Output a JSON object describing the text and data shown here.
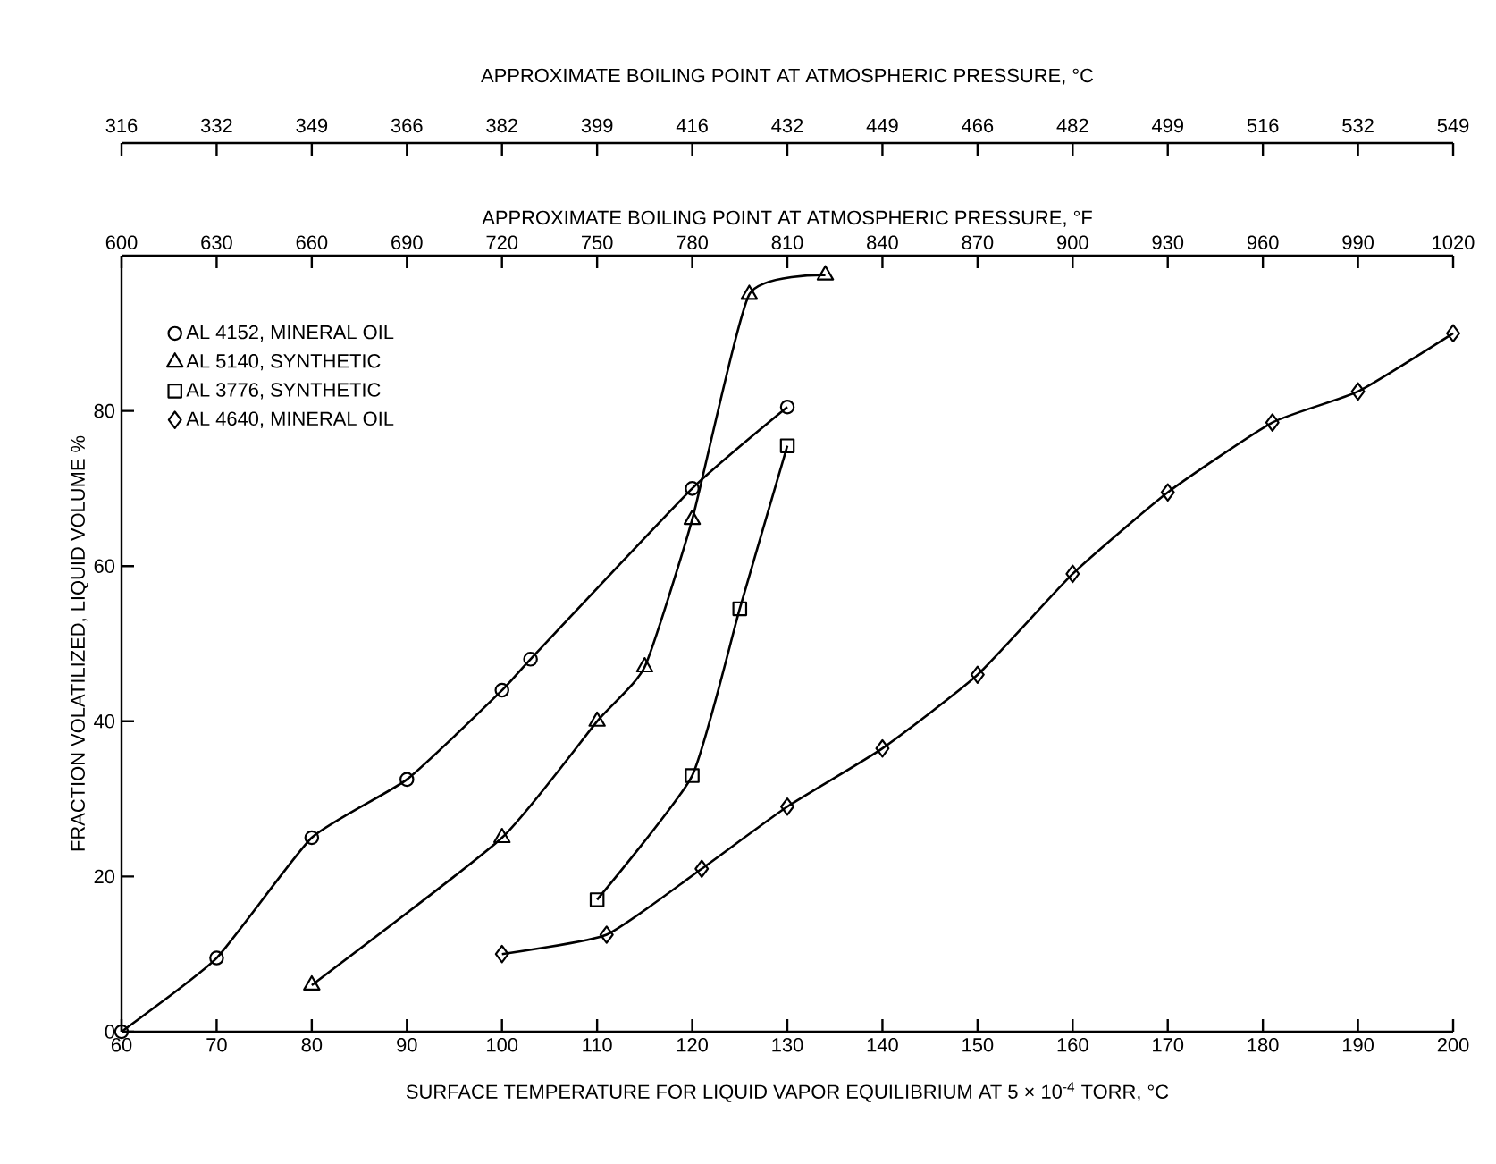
{
  "chart_data": {
    "type": "line",
    "title": "APPROXIMATE BOILING POINT AT ATMOSPHERIC PRESSURE, °C",
    "annotations": [
      "316",
      "332",
      "349",
      "366",
      "382",
      "399",
      "416",
      "432",
      "449",
      "466",
      "482",
      "499",
      "516",
      "532",
      "549"
    ],
    "xlabel": "SURFACE TEMPERATURE FOR LIQUID VAPOR EQUILIBRIUM AT 5 × 10$^{-4}$ TORR, °C",
    "ylabel": "FRACTION VOLATILIZED, LIQUID VOLUME %",
    "x2label": "APPROXIMATE BOILING POINT AT ATMOSPHERIC PRESSURE, °F",
    "xlim": [
      60,
      200
    ],
    "xticks": [
      60,
      70,
      80,
      90,
      100,
      110,
      120,
      130,
      140,
      150,
      160,
      170,
      180,
      190,
      200
    ],
    "ylim": [
      0,
      100
    ],
    "yticks": [
      0,
      20,
      40,
      60,
      80
    ],
    "x2lim": [
      600,
      1020
    ],
    "x2ticks": [
      600,
      630,
      660,
      690,
      720,
      750,
      780,
      810,
      840,
      870,
      900,
      930,
      960,
      990,
      1020
    ],
    "legend": "top left",
    "line_style": "solid",
    "series": [
      {
        "name": "AL 4152, MINERAL OIL",
        "color": "#000000",
        "marker": "circle",
        "x": [
          60,
          70,
          80,
          90,
          100,
          103,
          120,
          130
        ],
        "values": [
          0,
          9.5,
          25,
          32.5,
          44,
          48,
          70,
          80.5
        ]
      },
      {
        "name": "AL 5140, SYNTHETIC",
        "color": "#000000",
        "marker": "triangle",
        "x": [
          80,
          100,
          110,
          115,
          120,
          126,
          134
        ],
        "values": [
          6,
          25,
          40,
          47,
          66,
          95,
          97.5
        ]
      },
      {
        "name": "AL 3776, SYNTHETIC",
        "color": "#000000",
        "marker": "square",
        "x": [
          110,
          120,
          125,
          130
        ],
        "values": [
          17,
          33,
          54.5,
          75.5
        ]
      },
      {
        "name": "AL 4640, MINERAL OIL",
        "color": "#000000",
        "marker": "diamond",
        "x": [
          100,
          111,
          121,
          130,
          140,
          150,
          160,
          170,
          181,
          190,
          200
        ],
        "values": [
          10,
          12.5,
          21,
          29,
          36.5,
          46,
          59,
          69.5,
          78.5,
          82.5,
          90
        ]
      }
    ]
  }
}
